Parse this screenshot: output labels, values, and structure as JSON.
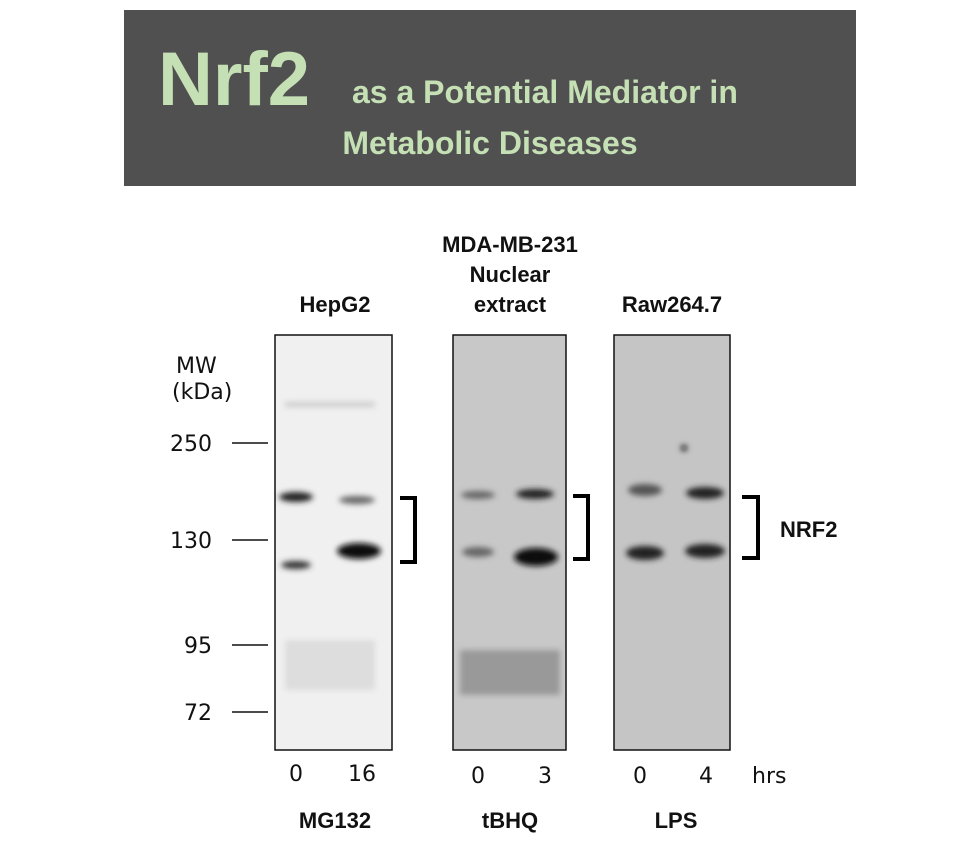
{
  "header": {
    "title_main": "Nrf2",
    "title_rest": "as a Potential Mediator in",
    "title_line2": "Metabolic Diseases"
  },
  "mw_label": [
    "MW",
    "(kDa)"
  ],
  "mw_markers": [
    "250",
    "130",
    "95",
    "72"
  ],
  "panels": [
    {
      "cell_line": [
        "HepG2"
      ],
      "lanes": [
        "0",
        "16"
      ],
      "treatment": "MG132"
    },
    {
      "cell_line": [
        "MDA-MB-231",
        "Nuclear",
        "extract"
      ],
      "lanes": [
        "0",
        "3"
      ],
      "treatment": "tBHQ"
    },
    {
      "cell_line": [
        "Raw264.7"
      ],
      "lanes": [
        "0",
        "4"
      ],
      "treatment": "LPS"
    }
  ],
  "time_unit": "hrs",
  "band_label": "NRF2"
}
